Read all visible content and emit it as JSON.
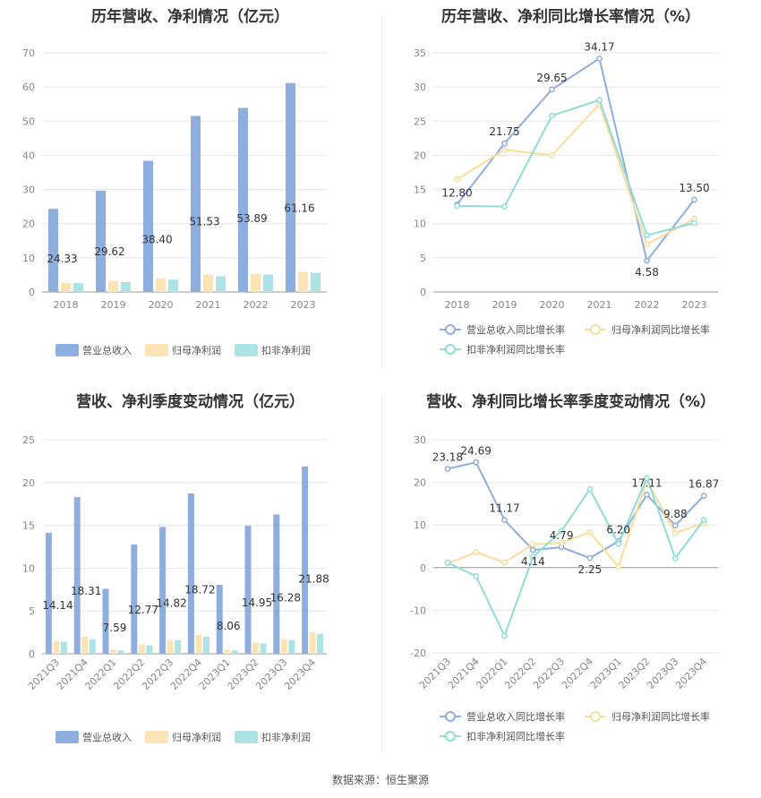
{
  "footer": "数据来源：恒生聚源",
  "colors": {
    "revenue": "#8eaee0",
    "net": "#fce3b4",
    "deducted": "#aee3e6",
    "line_revenue": "#8eaee0",
    "line_net": "#fbdc9a",
    "line_deducted": "#8fdcd8"
  },
  "chart_data": [
    {
      "id": "annual-bar",
      "type": "bar",
      "title": "历年营收、净利情况（亿元）",
      "categories": [
        "2018",
        "2019",
        "2020",
        "2021",
        "2022",
        "2023"
      ],
      "ylim": [
        0,
        70
      ],
      "yticks": [
        0,
        10,
        20,
        30,
        40,
        50,
        60,
        70
      ],
      "series": [
        {
          "name": "营业总收入",
          "values": [
            24.33,
            29.62,
            38.4,
            51.53,
            53.89,
            61.16
          ],
          "labels": [
            "24.33",
            "29.62",
            "38.40",
            "51.53",
            "53.89",
            "61.16"
          ]
        },
        {
          "name": "归母净利润",
          "values": [
            2.7,
            3.3,
            4.0,
            5.1,
            5.3,
            5.9
          ]
        },
        {
          "name": "扣非净利润",
          "values": [
            2.6,
            2.9,
            3.6,
            4.6,
            5.1,
            5.6
          ]
        }
      ]
    },
    {
      "id": "annual-line",
      "type": "line",
      "title": "历年营收、净利同比增长率情况（%）",
      "categories": [
        "2018",
        "2019",
        "2020",
        "2021",
        "2022",
        "2023"
      ],
      "ylim": [
        0,
        35
      ],
      "yticks": [
        0,
        5,
        10,
        15,
        20,
        25,
        30,
        35
      ],
      "series": [
        {
          "name": "营业总收入同比增长率",
          "values": [
            12.8,
            21.75,
            29.65,
            34.17,
            4.58,
            13.5
          ],
          "labels": [
            "12.80",
            "21.75",
            "29.65",
            "34.17",
            "4.58",
            "13.50"
          ]
        },
        {
          "name": "归母净利润同比增长率",
          "values": [
            16.5,
            20.8,
            20.0,
            27.5,
            7.0,
            10.7
          ]
        },
        {
          "name": "扣非净利润同比增长率",
          "values": [
            12.6,
            12.5,
            25.8,
            28.1,
            8.3,
            10.1
          ]
        }
      ]
    },
    {
      "id": "quarter-bar",
      "type": "bar",
      "title": "营收、净利季度变动情况（亿元）",
      "categories": [
        "2021Q3",
        "2021Q4",
        "2022Q1",
        "2022Q2",
        "2022Q3",
        "2022Q4",
        "2023Q1",
        "2023Q2",
        "2023Q3",
        "2023Q4"
      ],
      "ylim": [
        0,
        25
      ],
      "yticks": [
        0,
        5,
        10,
        15,
        20,
        25
      ],
      "series": [
        {
          "name": "营业总收入",
          "values": [
            14.14,
            18.31,
            7.59,
            12.77,
            14.82,
            18.72,
            8.06,
            14.95,
            16.28,
            21.88
          ],
          "labels": [
            "14.14",
            "18.31",
            "7.59",
            "12.77",
            "14.82",
            "18.72",
            "8.06",
            "14.95",
            "16.28",
            "21.88"
          ]
        },
        {
          "name": "归母净利润",
          "values": [
            1.5,
            2.0,
            0.5,
            1.1,
            1.6,
            2.2,
            0.5,
            1.3,
            1.7,
            2.5
          ]
        },
        {
          "name": "扣非净利润",
          "values": [
            1.4,
            1.7,
            0.4,
            1.0,
            1.6,
            2.0,
            0.4,
            1.2,
            1.6,
            2.3
          ]
        }
      ]
    },
    {
      "id": "quarter-line",
      "type": "line",
      "title": "营收、净利同比增长率季度变动情况（%）",
      "categories": [
        "2021Q3",
        "2021Q4",
        "2022Q1",
        "2022Q2",
        "2022Q3",
        "2022Q4",
        "2023Q1",
        "2023Q2",
        "2023Q3",
        "2023Q4"
      ],
      "ylim": [
        -20,
        30
      ],
      "yticks": [
        -20,
        -10,
        0,
        10,
        20,
        30
      ],
      "series": [
        {
          "name": "营业总收入同比增长率",
          "values": [
            23.18,
            24.69,
            11.17,
            4.14,
            4.79,
            2.25,
            6.2,
            17.11,
            9.88,
            16.87
          ],
          "labels": [
            "23.18",
            "24.69",
            "11.17",
            "4.14",
            "4.79",
            "2.25",
            "6.20",
            "17.11",
            "9.88",
            "16.87"
          ]
        },
        {
          "name": "归母净利润同比增长率",
          "values": [
            1.0,
            3.6,
            1.2,
            5.5,
            5.8,
            8.3,
            0.2,
            20.5,
            8.1,
            10.5
          ]
        },
        {
          "name": "扣非净利润同比增长率",
          "values": [
            1.2,
            -2.0,
            -16.0,
            2.5,
            8.6,
            18.4,
            5.6,
            21.0,
            2.2,
            11.2
          ]
        }
      ]
    }
  ]
}
